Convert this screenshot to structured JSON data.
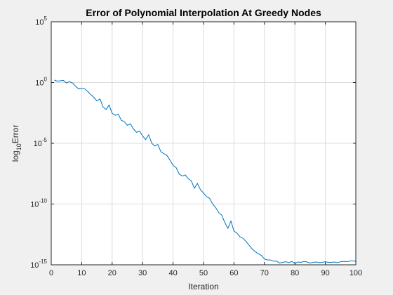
{
  "chart_data": {
    "type": "line",
    "title": "Error of Polynomial Interpolation At Greedy Nodes",
    "xlabel": "Iteration",
    "ylabel": {
      "base": "log",
      "sub": "10",
      "rest": "Error"
    },
    "x_scale": "linear",
    "y_scale": "log",
    "xlim": [
      0,
      100
    ],
    "ylim": [
      1e-15,
      100000.0
    ],
    "grid": true,
    "x_ticks": [
      0,
      10,
      20,
      30,
      40,
      50,
      60,
      70,
      80,
      90,
      100
    ],
    "y_ticks": [
      {
        "base": "10",
        "exp": "-15",
        "value": 1e-15
      },
      {
        "base": "10",
        "exp": "-10",
        "value": 1e-10
      },
      {
        "base": "10",
        "exp": "-5",
        "value": 1e-05
      },
      {
        "base": "10",
        "exp": "0",
        "value": 1
      },
      {
        "base": "10",
        "exp": "5",
        "value": 100000.0
      }
    ],
    "series": [
      {
        "color": "#0072bd",
        "x": [
          1,
          2,
          3,
          4,
          5,
          6,
          7,
          8,
          9,
          10,
          11,
          12,
          13,
          14,
          15,
          16,
          17,
          18,
          19,
          20,
          21,
          22,
          23,
          24,
          25,
          26,
          27,
          28,
          29,
          30,
          31,
          32,
          33,
          34,
          35,
          36,
          37,
          38,
          39,
          40,
          41,
          42,
          43,
          44,
          45,
          46,
          47,
          48,
          49,
          50,
          51,
          52,
          53,
          54,
          55,
          56,
          57,
          58,
          59,
          60,
          61,
          62,
          63,
          64,
          65,
          66,
          67,
          68,
          69,
          70,
          71,
          72,
          73,
          74,
          75,
          76,
          77,
          78,
          79,
          80,
          81,
          82,
          83,
          84,
          85,
          86,
          87,
          88,
          89,
          90,
          91,
          92,
          93,
          94,
          95,
          96,
          97,
          98,
          99,
          100
        ],
        "y": [
          1.6,
          1.3,
          1.4,
          1.5,
          0.9,
          1.2,
          0.9,
          0.5,
          0.3,
          0.32,
          0.3,
          0.18,
          0.1,
          0.06,
          0.03,
          0.045,
          0.01,
          0.006,
          0.014,
          0.003,
          0.002,
          0.0025,
          0.0008,
          0.0006,
          0.0003,
          0.0004,
          0.00015,
          8e-05,
          0.0001,
          4e-05,
          2e-05,
          5e-05,
          1e-05,
          6e-06,
          8e-06,
          2e-06,
          1.4e-06,
          1e-06,
          4e-07,
          1.5e-07,
          1e-07,
          3e-08,
          2e-08,
          2.5e-08,
          1.2e-08,
          8e-09,
          2e-09,
          5e-09,
          1.5e-09,
          8e-10,
          4e-10,
          3e-10,
          1e-10,
          5e-11,
          2e-11,
          1.2e-11,
          3e-12,
          1e-12,
          4e-12,
          6e-13,
          4e-13,
          2e-13,
          1.5e-13,
          8e-14,
          4e-14,
          2e-14,
          1.2e-14,
          8e-15,
          6e-15,
          3e-15,
          2.5e-15,
          2.5e-15,
          2e-15,
          2e-15,
          1.4e-15,
          1.6e-15,
          1.8e-15,
          1.5e-15,
          1.9e-15,
          1.3e-15,
          1.7e-15,
          1.6e-15,
          1.9e-15,
          1.7e-15,
          1.4e-15,
          1.6e-15,
          1.7e-15,
          1.5e-15,
          1.6e-15,
          1.8e-15,
          1.6e-15,
          1.6e-15,
          1.7e-15,
          1.5e-15,
          1.8e-15,
          1.9e-15,
          1.8e-15,
          2e-15,
          2.1e-15,
          1.9e-15
        ]
      }
    ]
  }
}
